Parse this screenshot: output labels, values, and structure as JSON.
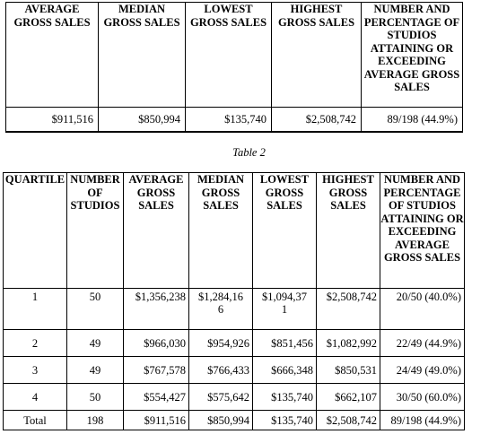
{
  "table1": {
    "headers": [
      "AVERAGE GROSS SALES",
      "MEDIAN GROSS SALES",
      "LOWEST GROSS SALES",
      "HIGHEST GROSS SALES",
      "NUMBER AND PERCENTAGE OF STUDIOS ATTAINING OR EXCEEDING AVERAGE GROSS SALES"
    ],
    "row": [
      "$911,516",
      "$850,994",
      "$135,740",
      "$2,508,742",
      "89/198 (44.9%)"
    ]
  },
  "caption": "Table 2",
  "table2": {
    "headers": [
      "QUARTILE",
      "NUMBER OF STUDIOS",
      "AVERAGE GROSS SALES",
      "MEDIAN GROSS SALES",
      "LOWEST GROSS SALES",
      "HIGHEST GROSS SALES",
      "NUMBER AND PERCENTAGE OF STUDIOS ATTAINING OR EXCEEDING AVERAGE GROSS SALES"
    ],
    "rows": [
      [
        "1",
        "50",
        "$1,356,238",
        "$1,284,16 6",
        "$1,094,37 1",
        "$2,508,742",
        "20/50 (40.0%)"
      ],
      [
        "2",
        "49",
        "$966,030",
        "$954,926",
        "$851,456",
        "$1,082,992",
        "22/49 (44.9%)"
      ],
      [
        "3",
        "49",
        "$767,578",
        "$766,433",
        "$666,348",
        "$850,531",
        "24/49 (49.0%)"
      ],
      [
        "4",
        "50",
        "$554,427",
        "$575,642",
        "$135,740",
        "$662,107",
        "30/50 (60.0%)"
      ],
      [
        "Total",
        "198",
        "$911,516",
        "$850,994",
        "$135,740",
        "$2,508,742",
        "89/198 (44.9%)"
      ]
    ]
  }
}
